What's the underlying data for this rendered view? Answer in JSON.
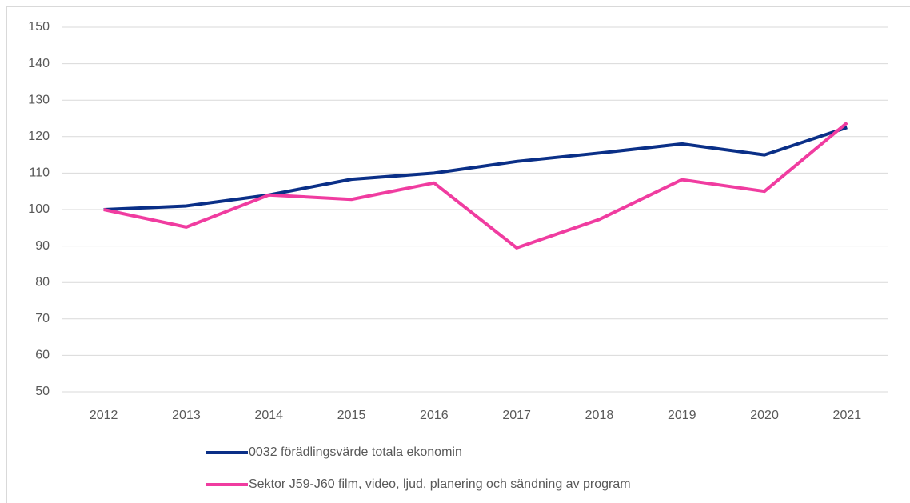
{
  "chart_data": {
    "type": "line",
    "categories": [
      "2012",
      "2013",
      "2014",
      "2015",
      "2016",
      "2017",
      "2018",
      "2019",
      "2020",
      "2021"
    ],
    "series": [
      {
        "name": "0032 förädlingsvärde totala ekonomin",
        "color": "#0a2f87",
        "values": [
          100,
          101,
          104,
          108.3,
          110,
          113.2,
          115.5,
          118,
          115,
          122.5
        ]
      },
      {
        "name": "Sektor J59-J60 film, video, ljud, planering och sändning av program",
        "color": "#f03ca0",
        "values": [
          100,
          95.2,
          104,
          102.8,
          107.3,
          89.5,
          97.3,
          108.2,
          105,
          123.8
        ]
      }
    ],
    "ylim": [
      50,
      150
    ],
    "yticks": [
      50,
      60,
      70,
      80,
      90,
      100,
      110,
      120,
      130,
      140,
      150
    ],
    "grid": true,
    "legend": "bottom"
  }
}
